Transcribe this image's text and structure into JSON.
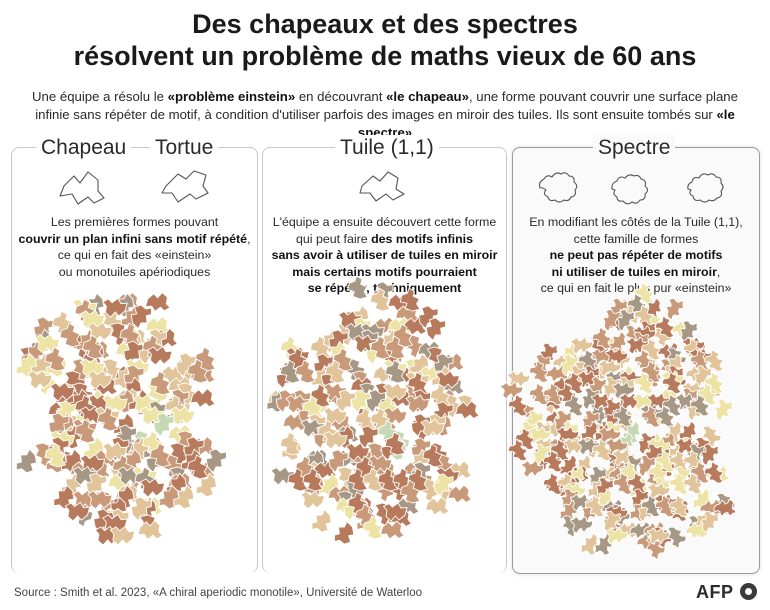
{
  "title": {
    "line1": "Des chapeaux et des spectres",
    "line2": "résolvent un problème de maths vieux de 60 ans"
  },
  "intro": {
    "t1": "Une équipe a résolu le ",
    "b1": "«problème einstein»",
    "t2": " en découvrant ",
    "b2": "«le chapeau»",
    "t3": ", une forme pouvant couvrir une surface plane infinie sans répéter de motif, à condition d'utiliser parfois des images en miroir des tuiles. Ils sont ensuite tombés sur ",
    "b3": "«le spectre»"
  },
  "panels": {
    "hat": {
      "title_a": "Chapeau",
      "title_b": "Tortue",
      "d1": "Les premières formes pouvant",
      "d2": "couvrir un plan infini sans motif répété",
      "d3": ",",
      "d4": "ce qui en fait des «einstein»",
      "d5": "ou monotuiles apériodiques"
    },
    "tile": {
      "title": "Tuile (1,1)",
      "d1": "L'équipe a ensuite découvert cette forme",
      "d2a": "qui peut faire ",
      "d2b": "des motifs infinis",
      "d3": "sans avoir à utiliser de tuiles en miroir",
      "d4": "mais certains motifs pourraient",
      "d5": "se répéter, techniquement"
    },
    "spectre": {
      "title": "Spectre",
      "d1": "En modifiant les côtés de la Tuile (1,1),",
      "d2": "cette famille de formes",
      "d3": "ne peut pas répéter de motifs",
      "d4": "ni utiliser de tuiles en miroir",
      "d5": ",",
      "d6": "ce qui en fait le plus pur «einstein»"
    }
  },
  "footer": {
    "source": "Source : Smith et al. 2023, «A chiral aperiodic monotile», Université de Waterloo",
    "logo": "AFP"
  },
  "colors": {
    "dark_brown": "#b87a5c",
    "mid_brown": "#c99a7a",
    "tan": "#e2c49a",
    "pale_yellow": "#ece3a4",
    "grey_brown": "#a69885",
    "mint": "#c6d8b4",
    "outline": "#ffffff"
  }
}
